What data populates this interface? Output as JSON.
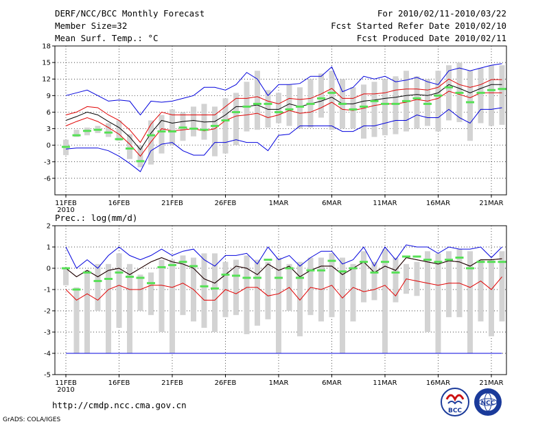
{
  "header": {
    "left": [
      "DERF/NCC/BCC Monthly Forecast",
      "Member Size=32",
      "Mean Surf. Temp.: °C"
    ],
    "right": [
      "For 2010/02/11-2010/03/22",
      "Fcst Started Refer Date 2010/02/10",
      "Fcst Produced Date 2010/02/11"
    ]
  },
  "footer": {
    "url": "http://cmdp.ncc.cma.gov.cn",
    "credit": "GrADS: COLA/IGES",
    "logo_left_text": "BCC",
    "logo_right_text": "NCC"
  },
  "colors": {
    "box": "#d3d3d3",
    "median": "#55e055",
    "mean": "#000000",
    "std": "#e00000",
    "envelope": "#0000dd",
    "grid": "#000000"
  },
  "chart_data": [
    {
      "type": "box",
      "title": "Mean Surf. Temp.: °C",
      "ylim": [
        -9,
        18
      ],
      "yticks": [
        -6,
        -3,
        0,
        3,
        6,
        9,
        12,
        15,
        18
      ],
      "xticks": [
        1,
        6,
        11,
        16,
        21,
        26,
        31,
        36,
        41
      ],
      "xtick_labels": [
        "11FEB",
        "16FEB",
        "21FEB",
        "26FEB",
        "1MAR",
        "6MAR",
        "11MAR",
        "16MAR",
        "21MAR"
      ],
      "xtick_year": "2010",
      "x": [
        1,
        2,
        3,
        4,
        5,
        6,
        7,
        8,
        9,
        10,
        11,
        12,
        13,
        14,
        15,
        16,
        17,
        18,
        19,
        20,
        21,
        22,
        23,
        24,
        25,
        26,
        27,
        28,
        29,
        30,
        31,
        32,
        33,
        34,
        35,
        36,
        37,
        38,
        39,
        40,
        41,
        42
      ],
      "box_low": [
        -1.8,
        1.5,
        1.8,
        2.2,
        1.5,
        0.8,
        -2.5,
        -4,
        -3.5,
        -1.5,
        0,
        0.8,
        1.6,
        1.0,
        -2.0,
        -1.5,
        0,
        2.5,
        2.8,
        3.2,
        4.0,
        3.5,
        3.0,
        3.2,
        5.0,
        2.8,
        3.0,
        3.0,
        1.2,
        1.5,
        1.8,
        2.0,
        2.5,
        3.0,
        3.5,
        2.5,
        4.5,
        4.2,
        0.8,
        4.0,
        3.5,
        3.7
      ],
      "box_high": [
        1.0,
        2.8,
        3.2,
        3.5,
        4.0,
        4.5,
        2.0,
        0,
        4.5,
        5.5,
        6.5,
        6.0,
        7.0,
        7.5,
        7.0,
        8.5,
        9.5,
        11.5,
        13.5,
        10.0,
        9.5,
        11.0,
        10.5,
        12.0,
        13.0,
        13.5,
        12.0,
        10.5,
        11.0,
        11.5,
        12.0,
        12.5,
        13.5,
        12.5,
        12.0,
        13.5,
        14.5,
        15.0,
        13.5,
        14.0,
        14.5,
        14.5
      ],
      "median": [
        -0.3,
        1.8,
        2.6,
        2.8,
        2.3,
        1.1,
        -0.6,
        -2.9,
        1.8,
        2.5,
        2.5,
        3.2,
        3.0,
        2.8,
        3.5,
        4.5,
        6.0,
        7.0,
        7.5,
        7.5,
        6.0,
        6.5,
        7.0,
        7.5,
        8.5,
        9.5,
        7.5,
        6.5,
        7.0,
        8.0,
        7.5,
        7.5,
        8.0,
        8.5,
        7.5,
        9.0,
        10.5,
        9.5,
        7.8,
        9.5,
        10.0,
        10.2
      ],
      "mean": [
        4.5,
        5.2,
        6.0,
        5.5,
        4.3,
        3.2,
        1.5,
        -0.8,
        2.2,
        4.5,
        4.0,
        4.3,
        4.5,
        4.2,
        4.3,
        5.5,
        7.0,
        7.0,
        7.3,
        6.5,
        6.5,
        7.5,
        7.0,
        7.5,
        8.0,
        8.7,
        7.5,
        7.5,
        8.0,
        8.2,
        8.5,
        8.7,
        9.0,
        9.2,
        9.0,
        9.5,
        11.0,
        10.3,
        9.5,
        10.3,
        11.0,
        11.0
      ],
      "std_upper": [
        5.5,
        6.0,
        7.0,
        6.8,
        5.5,
        4.5,
        2.8,
        0.5,
        3.8,
        6.0,
        5.5,
        5.5,
        5.5,
        5.5,
        5.5,
        7.0,
        8.5,
        8.5,
        8.8,
        8.0,
        7.5,
        8.5,
        8.3,
        8.5,
        9.3,
        10.3,
        8.5,
        8.5,
        9.3,
        9.3,
        9.5,
        10.0,
        10.2,
        10.2,
        10.0,
        10.5,
        12.0,
        11.0,
        10.5,
        11.0,
        11.9,
        11.9
      ],
      "std_lower": [
        3.5,
        4.3,
        5.0,
        4.3,
        3.2,
        2.0,
        0.2,
        -2.0,
        0.6,
        3.0,
        2.6,
        2.8,
        3.0,
        2.6,
        3.0,
        4.5,
        5.3,
        5.5,
        5.8,
        5.0,
        5.5,
        6.3,
        5.8,
        6.0,
        6.8,
        7.8,
        6.5,
        6.3,
        6.7,
        7.2,
        7.5,
        7.5,
        7.8,
        8.3,
        8.0,
        8.5,
        9.8,
        9.2,
        8.6,
        9.5,
        9.5,
        9.5
      ],
      "env_upper": [
        9.0,
        9.5,
        10.0,
        9.0,
        8.0,
        8.2,
        8.0,
        5.5,
        8.0,
        7.8,
        8.0,
        8.5,
        9.0,
        10.5,
        10.5,
        10.0,
        11.0,
        13.2,
        12.0,
        9.0,
        11.0,
        11.0,
        11.2,
        12.5,
        12.5,
        14.2,
        9.7,
        10.5,
        12.5,
        12.0,
        12.5,
        11.5,
        11.8,
        12.3,
        11.5,
        11.0,
        13.5,
        14.0,
        13.5,
        14.0,
        14.5,
        14.8
      ],
      "env_lower": [
        -0.7,
        -0.5,
        -0.5,
        -0.5,
        -1.0,
        -2.0,
        -3.3,
        -4.8,
        -1.0,
        0.2,
        0.5,
        -1.0,
        -1.8,
        -1.8,
        0.5,
        0.5,
        1.0,
        0.5,
        0.5,
        -1.0,
        1.8,
        2.0,
        3.5,
        3.5,
        3.5,
        3.5,
        2.5,
        2.5,
        3.5,
        3.5,
        4.0,
        4.5,
        4.5,
        5.5,
        5.0,
        5.0,
        6.5,
        5.0,
        4.0,
        6.5,
        6.5,
        6.8
      ]
    },
    {
      "type": "box",
      "title": "Prec.: log(mm/d)",
      "ylim": [
        -5,
        2
      ],
      "yticks": [
        -5,
        -4,
        -3,
        -2,
        -1,
        0,
        1,
        2
      ],
      "xticks": [
        1,
        6,
        11,
        16,
        21,
        26,
        31,
        36,
        41
      ],
      "xtick_labels": [
        "11FEB",
        "16FEB",
        "21FEB",
        "26FEB",
        "1MAR",
        "6MAR",
        "11MAR",
        "16MAR",
        "21MAR"
      ],
      "xtick_year": "2010",
      "x": [
        1,
        2,
        3,
        4,
        5,
        6,
        7,
        8,
        9,
        10,
        11,
        12,
        13,
        14,
        15,
        16,
        17,
        18,
        19,
        20,
        21,
        22,
        23,
        24,
        25,
        26,
        27,
        28,
        29,
        30,
        31,
        32,
        33,
        34,
        35,
        36,
        37,
        38,
        39,
        40,
        41,
        42
      ],
      "box_low": [
        -0.8,
        -4,
        -4,
        -2,
        -4,
        -2.8,
        -4,
        -2,
        -2.2,
        -3,
        -4,
        -2.2,
        -2.5,
        -2.8,
        -3,
        -2.3,
        -2.2,
        -3.1,
        -2.7,
        -2.4,
        -4,
        -2,
        -3.2,
        -2.2,
        -2.5,
        -2.3,
        -4,
        -2.5,
        -1.6,
        -1.5,
        -4,
        -1.6,
        -1.2,
        -1.3,
        -3,
        -4,
        -2.3,
        -2.3,
        -4,
        -2.5,
        -3.2,
        -2.5
      ],
      "box_high": [
        0.0,
        -0.9,
        -0.1,
        0.2,
        0.2,
        0.7,
        0.2,
        -0.3,
        -0.2,
        0.4,
        0.4,
        0.6,
        0.5,
        0.7,
        0.7,
        0.3,
        0.4,
        0.6,
        0.4,
        0.3,
        0.5,
        0.2,
        0.3,
        0.5,
        0.5,
        0.7,
        0.5,
        0.2,
        0.8,
        0.3,
        0.9,
        0.5,
        0.2,
        0.3,
        0.8,
        0.7,
        0.8,
        0.9,
        0.8,
        0.4,
        0.4,
        0.8
      ],
      "median": [
        0.0,
        -1.0,
        -0.2,
        -0.6,
        -0.5,
        -0.2,
        -0.4,
        -0.45,
        -0.7,
        0.05,
        0.15,
        0.3,
        0.1,
        -0.85,
        -0.95,
        -0.3,
        -0.35,
        -0.45,
        -0.45,
        0.4,
        -0.45,
        0.0,
        -0.45,
        -0.1,
        -0.1,
        0.35,
        -0.15,
        0.0,
        0.3,
        -0.2,
        0.3,
        -0.2,
        0.55,
        0.55,
        0.4,
        0.3,
        0.4,
        0.5,
        0.0,
        0.3,
        0.3,
        0.3
      ],
      "mean": [
        0.0,
        -0.4,
        -0.1,
        -0.4,
        -0.1,
        0.0,
        -0.3,
        0.0,
        0.3,
        0.5,
        0.3,
        0.2,
        0.0,
        -0.5,
        -0.7,
        -0.3,
        0.1,
        0.0,
        -0.3,
        0.2,
        -0.1,
        0.1,
        -0.4,
        -0.1,
        0.1,
        0.1,
        -0.3,
        0.0,
        0.3,
        -0.2,
        0.1,
        -0.1,
        0.5,
        0.4,
        0.3,
        0.2,
        0.35,
        0.3,
        0.1,
        0.4,
        0.4,
        0.45
      ],
      "std_upper": [
        0.0,
        -0.4,
        -0.1,
        -0.4,
        -0.1,
        0.0,
        -0.3,
        0.0,
        0.3,
        0.5,
        0.3,
        0.2,
        0.0,
        -0.5,
        -0.7,
        -0.3,
        0.1,
        0.0,
        -0.3,
        0.2,
        -0.1,
        0.1,
        -0.4,
        -0.1,
        0.1,
        0.1,
        -0.3,
        0.0,
        0.3,
        -0.2,
        0.1,
        -0.1,
        0.5,
        0.4,
        0.3,
        0.2,
        0.35,
        0.3,
        0.1,
        0.4,
        0.4,
        0.45
      ],
      "std_lower": [
        -1.0,
        -1.5,
        -1.2,
        -1.5,
        -1.0,
        -0.8,
        -1.0,
        -1.0,
        -0.8,
        -0.8,
        -0.9,
        -0.7,
        -1.0,
        -1.5,
        -1.5,
        -1.0,
        -1.2,
        -0.9,
        -0.9,
        -1.3,
        -1.2,
        -0.9,
        -1.5,
        -0.9,
        -1.0,
        -0.8,
        -1.4,
        -0.9,
        -1.1,
        -1.0,
        -0.8,
        -1.3,
        -0.5,
        -0.6,
        -0.7,
        -0.8,
        -0.7,
        -0.7,
        -0.9,
        -0.6,
        -1.0,
        -0.4
      ],
      "env_upper": [
        1.0,
        0.0,
        0.4,
        0.0,
        0.6,
        1.0,
        0.6,
        0.4,
        0.6,
        0.9,
        0.6,
        0.8,
        0.9,
        0.4,
        0.1,
        0.6,
        0.6,
        0.7,
        0.2,
        1.0,
        0.4,
        0.6,
        0.1,
        0.5,
        0.8,
        0.8,
        0.2,
        0.4,
        1.0,
        0.1,
        1.0,
        0.4,
        1.1,
        1.0,
        1.0,
        0.7,
        1.0,
        0.9,
        0.9,
        1.0,
        0.5,
        1.0
      ],
      "env_lower": [
        -4,
        -4,
        -4,
        -4,
        -4,
        -4,
        -4,
        -4,
        -4,
        -4,
        -4,
        -4,
        -4,
        -4,
        -4,
        -4,
        -4,
        -4,
        -4,
        -4,
        -4,
        -4,
        -4,
        -4,
        -4,
        -4,
        -4,
        -4,
        -4,
        -4,
        -4,
        -4,
        -4,
        -4,
        -4,
        -4,
        -4,
        -4,
        -4,
        -4,
        -4,
        -4
      ]
    }
  ]
}
